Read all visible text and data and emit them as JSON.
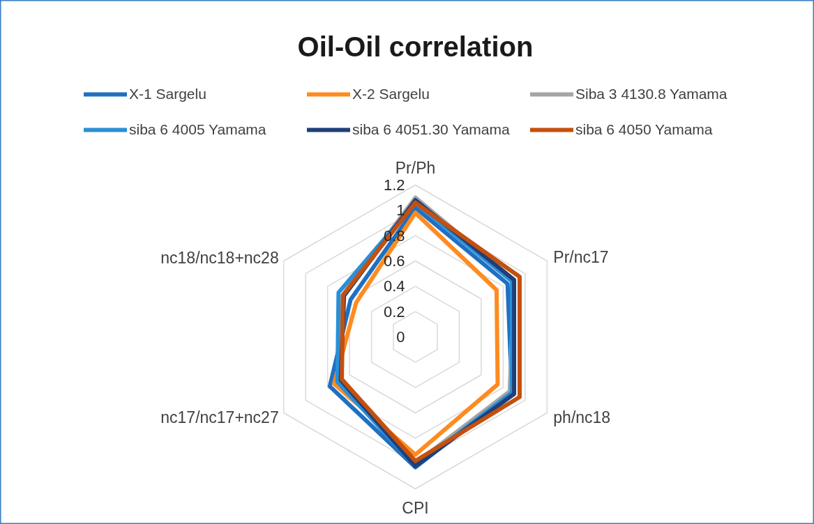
{
  "chart_data": {
    "type": "radar",
    "title": "Oil-Oil correlation",
    "categories": [
      "Pr/Ph",
      "Pr/nc17",
      "ph/nc18",
      "CPI",
      "nc17/nc17+nc27",
      "nc18/nc18+nc28"
    ],
    "ylim": [
      0,
      1.2
    ],
    "yticks": [
      {
        "value": 0,
        "label": "0"
      },
      0.2,
      0.4,
      0.6,
      0.8,
      1,
      1.2
    ],
    "grid": true,
    "legend": "top",
    "series": [
      {
        "name": "X-1 Sargelu",
        "color": "#1f70c1",
        "values": [
          1.02,
          0.84,
          0.88,
          1.03,
          0.78,
          0.59
        ]
      },
      {
        "name": "X-2 Sargelu",
        "color": "#ff8b20",
        "values": [
          0.98,
          0.74,
          0.75,
          0.93,
          0.74,
          0.54
        ]
      },
      {
        "name": "Siba 3 4130.8 Yamama",
        "color": "#a5a5a5",
        "values": [
          1.1,
          0.9,
          0.86,
          1.0,
          0.68,
          0.66
        ]
      },
      {
        "name": "siba 6 4005 Yamama",
        "color": "#2a8fd6",
        "values": [
          1.06,
          0.88,
          0.88,
          1.02,
          0.71,
          0.7
        ]
      },
      {
        "name": "siba 6 4051.30 Yamama",
        "color": "#1f3f78",
        "values": [
          1.08,
          0.9,
          0.9,
          1.02,
          0.68,
          0.65
        ]
      },
      {
        "name": "siba 6 4050 Yamama",
        "color": "#c4500e",
        "values": [
          1.06,
          0.95,
          0.95,
          0.98,
          0.67,
          0.66
        ]
      }
    ]
  }
}
